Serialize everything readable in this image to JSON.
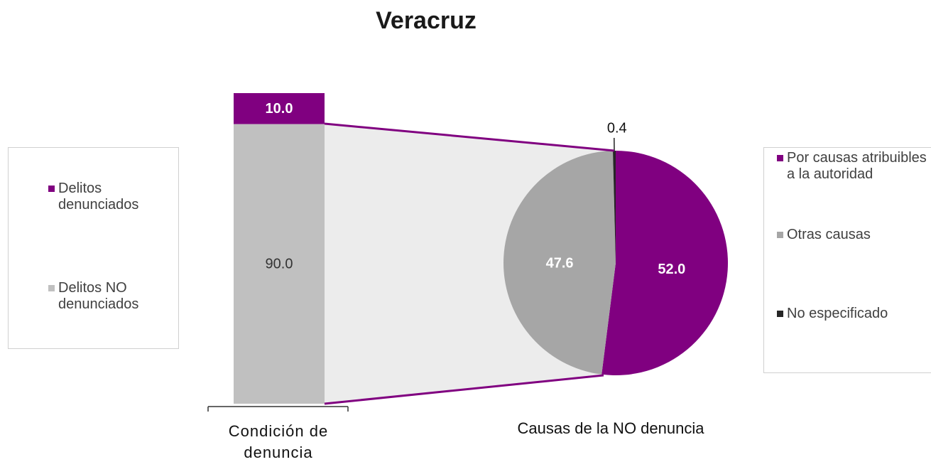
{
  "chart_data": [
    {
      "type": "bar",
      "title": "Veracruz",
      "xlabel": "Condición de denuncia",
      "series": [
        {
          "name": "Delitos denunciados",
          "color": "#800080",
          "values": [
            10.0
          ],
          "value_labels": [
            "10.0"
          ]
        },
        {
          "name": "Delitos NO denunciados",
          "color": "#c0c0c0",
          "values": [
            90.0
          ],
          "value_labels": [
            "90.0"
          ]
        }
      ]
    },
    {
      "type": "pie",
      "xlabel": "Causas de la NO denuncia",
      "categories": [
        "Por causas atribuibles a la autoridad",
        "Otras causas",
        "No especificado"
      ],
      "values": [
        52.0,
        47.6,
        0.4
      ],
      "value_labels": [
        "52.0",
        "47.6",
        "0.4"
      ],
      "colors": [
        "#800080",
        "#a6a6a6",
        "#262626"
      ]
    }
  ]
}
